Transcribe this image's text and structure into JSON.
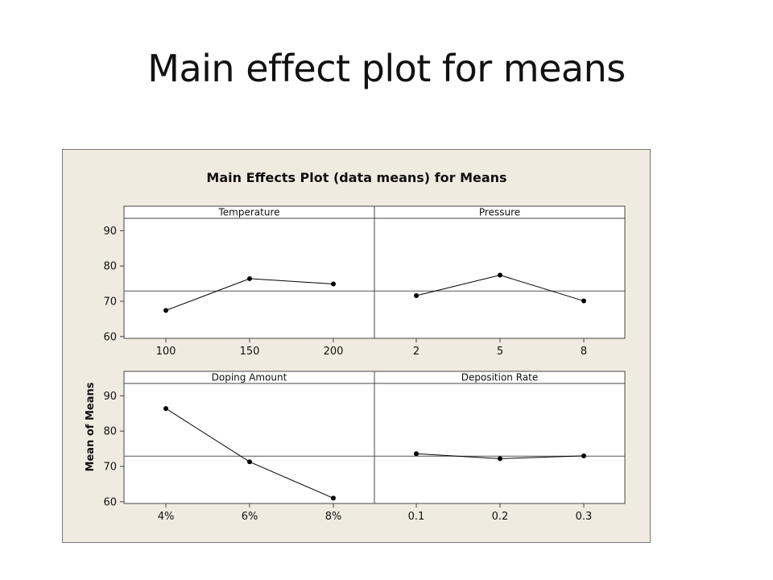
{
  "slide": {
    "title": "Main effect plot for means"
  },
  "colors": {
    "figure_background": "#efebe0",
    "plot_background": "#ffffff",
    "line": "#000000"
  },
  "chart_data": {
    "type": "line",
    "title": "Main Effects Plot (data means) for Means",
    "ylabel": "Mean of Means",
    "ylim": [
      59.5,
      93.5
    ],
    "yticks": [
      60,
      70,
      80,
      90
    ],
    "reference_line": 72.9,
    "panels": [
      {
        "name": "Temperature",
        "categories": [
          "100",
          "150",
          "200"
        ],
        "values": [
          67.4,
          76.4,
          74.9
        ]
      },
      {
        "name": "Pressure",
        "categories": [
          "2",
          "5",
          "8"
        ],
        "values": [
          71.6,
          77.4,
          70.1
        ]
      },
      {
        "name": "Doping Amount",
        "categories": [
          "4%",
          "6%",
          "8%"
        ],
        "values": [
          86.4,
          71.3,
          61.0
        ]
      },
      {
        "name": "Deposition Rate",
        "categories": [
          "0.1",
          "0.2",
          "0.3"
        ],
        "values": [
          73.6,
          72.2,
          73.0
        ]
      }
    ]
  }
}
